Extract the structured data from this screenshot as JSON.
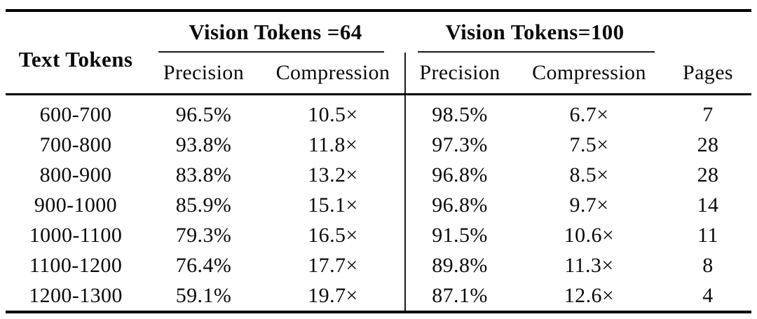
{
  "table": {
    "corner_header": "Text Tokens",
    "group1_label": "Vision Tokens =64",
    "group2_label": "Vision Tokens=100",
    "subheaders": {
      "p64": "Precision",
      "c64": "Compression",
      "p100": "Precision",
      "c100": "Compression",
      "pages": "Pages"
    },
    "rows": [
      {
        "tokens": "600-700",
        "p64": "96.5%",
        "c64": "10.5×",
        "p100": "98.5%",
        "c100": "6.7×",
        "pages": "7"
      },
      {
        "tokens": "700-800",
        "p64": "93.8%",
        "c64": "11.8×",
        "p100": "97.3%",
        "c100": "7.5×",
        "pages": "28"
      },
      {
        "tokens": "800-900",
        "p64": "83.8%",
        "c64": "13.2×",
        "p100": "96.8%",
        "c100": "8.5×",
        "pages": "28"
      },
      {
        "tokens": "900-1000",
        "p64": "85.9%",
        "c64": "15.1×",
        "p100": "96.8%",
        "c100": "9.7×",
        "pages": "14"
      },
      {
        "tokens": "1000-1100",
        "p64": "79.3%",
        "c64": "16.5×",
        "p100": "91.5%",
        "c100": "10.6×",
        "pages": "11"
      },
      {
        "tokens": "1100-1200",
        "p64": "76.4%",
        "c64": "17.7×",
        "p100": "89.8%",
        "c100": "11.3×",
        "pages": "8"
      },
      {
        "tokens": "1200-1300",
        "p64": "59.1%",
        "c64": "19.7×",
        "p100": "87.1%",
        "c100": "12.6×",
        "pages": "4"
      }
    ],
    "colors": {
      "text": "#0a0a0a",
      "rule": "#000000",
      "background": "#ffffff"
    }
  }
}
